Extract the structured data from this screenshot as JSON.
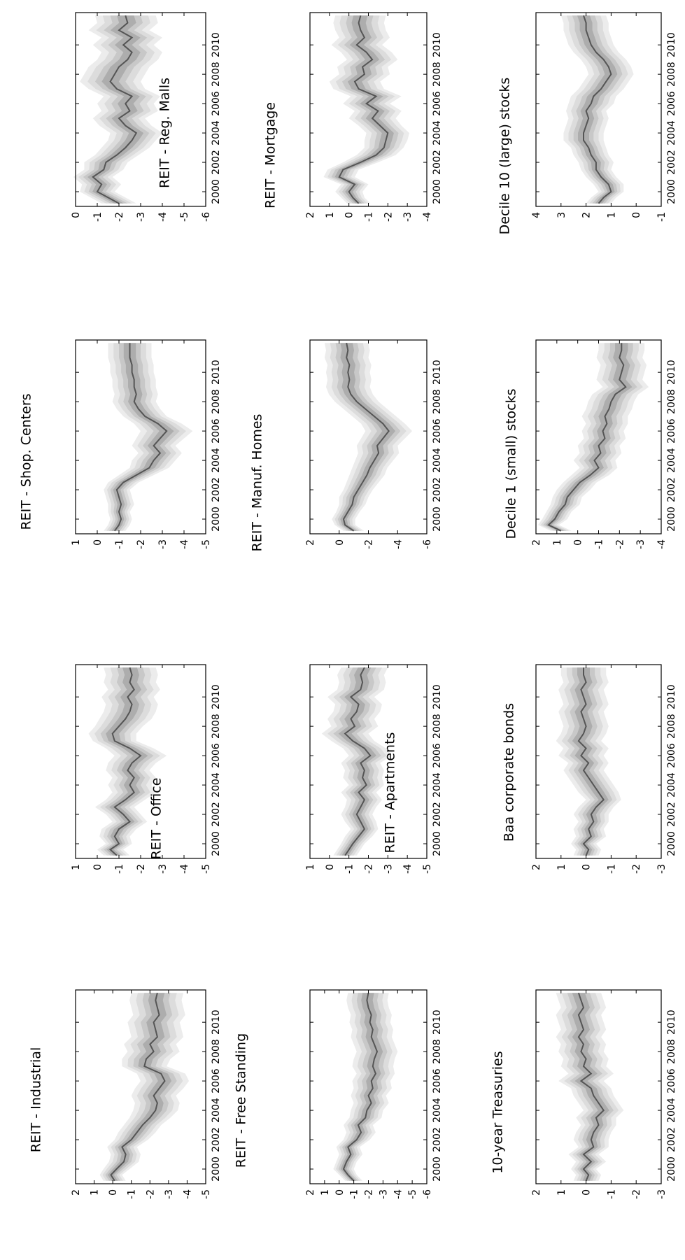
{
  "figure": {
    "x_tick_labels": [
      "2000",
      "2002",
      "2004",
      "2006",
      "2008",
      "2010"
    ]
  },
  "chart_data": [
    {
      "type": "area",
      "title": "REIT - Industrial",
      "xlim": [
        1999,
        2012.2
      ],
      "ylim": [
        -5,
        2
      ],
      "yticks": [
        -5,
        -4,
        -3,
        -2,
        -1,
        0,
        1,
        2
      ],
      "x": [
        1999.2,
        1999.6,
        2000.0,
        2000.5,
        2001.0,
        2001.5,
        2002.0,
        2002.5,
        2003.0,
        2003.5,
        2004.0,
        2004.5,
        2005.0,
        2005.5,
        2006.0,
        2006.5,
        2007.0,
        2007.5,
        2008.0,
        2008.5,
        2009.0,
        2009.5,
        2010.0,
        2010.5,
        2011.0,
        2011.5,
        2012.0
      ],
      "median": [
        -0.1,
        0.1,
        -0.2,
        -0.6,
        -0.7,
        -0.5,
        -1.0,
        -1.3,
        -1.6,
        -2.0,
        -2.3,
        -2.4,
        -2.2,
        -2.5,
        -2.8,
        -2.6,
        -1.7,
        -1.8,
        -2.2,
        -2.0,
        -2.4,
        -2.3,
        -2.2,
        -2.5,
        -2.4,
        -2.3,
        -2.4
      ],
      "band": [
        0.6,
        0.6,
        0.7,
        0.8,
        0.8,
        0.8,
        0.9,
        1.0,
        1.0,
        1.1,
        1.2,
        1.2,
        1.2,
        1.3,
        1.3,
        1.3,
        1.2,
        1.3,
        1.4,
        1.4,
        1.4,
        1.4,
        1.4,
        1.4,
        1.4,
        1.4,
        1.4
      ]
    },
    {
      "type": "area",
      "title": "REIT - Office",
      "xlim": [
        1999,
        2012.2
      ],
      "ylim": [
        -5,
        1
      ],
      "yticks": [
        -5,
        -4,
        -3,
        -2,
        -1,
        0,
        1
      ],
      "x": [
        1999.2,
        1999.6,
        2000.0,
        2000.5,
        2001.0,
        2001.5,
        2002.0,
        2002.5,
        2003.0,
        2003.5,
        2004.0,
        2004.5,
        2005.0,
        2005.5,
        2006.0,
        2006.5,
        2007.0,
        2007.5,
        2008.0,
        2008.5,
        2009.0,
        2009.5,
        2010.0,
        2010.5,
        2011.0,
        2011.5,
        2012.0
      ],
      "median": [
        -0.9,
        -0.6,
        -1.0,
        -0.8,
        -1.0,
        -1.5,
        -1.2,
        -0.8,
        -1.3,
        -1.7,
        -1.5,
        -1.7,
        -1.4,
        -1.6,
        -2.0,
        -1.5,
        -0.8,
        -0.7,
        -1.0,
        -1.3,
        -1.5,
        -1.6,
        -1.4,
        -1.7,
        -1.5,
        -1.6,
        -1.5
      ],
      "band": [
        0.6,
        0.6,
        0.6,
        0.7,
        0.8,
        0.8,
        0.8,
        0.9,
        0.9,
        1.0,
        1.0,
        1.0,
        1.0,
        1.1,
        1.2,
        1.1,
        1.0,
        1.1,
        1.1,
        1.2,
        1.2,
        1.2,
        1.2,
        1.2,
        1.2,
        1.2,
        1.2
      ]
    },
    {
      "type": "area",
      "title": "REIT - Shop. Centers",
      "xlim": [
        1999,
        2012.2
      ],
      "ylim": [
        -5,
        1
      ],
      "yticks": [
        -5,
        -4,
        -3,
        -2,
        -1,
        0,
        1
      ],
      "x": [
        1999.2,
        1999.6,
        2000.0,
        2000.5,
        2001.0,
        2001.5,
        2002.0,
        2002.5,
        2003.0,
        2003.5,
        2004.0,
        2004.5,
        2005.0,
        2005.5,
        2006.0,
        2006.5,
        2007.0,
        2007.5,
        2008.0,
        2008.5,
        2009.0,
        2009.5,
        2010.0,
        2010.5,
        2011.0,
        2011.5,
        2012.0
      ],
      "median": [
        -0.8,
        -1.0,
        -1.1,
        -1.0,
        -1.1,
        -1.0,
        -0.9,
        -1.2,
        -1.8,
        -2.4,
        -2.6,
        -2.9,
        -2.6,
        -2.9,
        -3.2,
        -2.8,
        -2.2,
        -1.9,
        -1.7,
        -1.8,
        -1.7,
        -1.7,
        -1.6,
        -1.6,
        -1.5,
        -1.5,
        -1.5
      ],
      "band": [
        0.5,
        0.5,
        0.5,
        0.5,
        0.6,
        0.6,
        0.6,
        0.7,
        0.8,
        0.9,
        1.0,
        1.0,
        1.0,
        1.1,
        1.2,
        1.1,
        1.0,
        1.0,
        1.0,
        1.0,
        1.0,
        1.0,
        1.0,
        1.0,
        1.0,
        1.0,
        1.0
      ]
    },
    {
      "type": "area",
      "title": "REIT - Reg. Malls",
      "xlim": [
        1999,
        2012.2
      ],
      "ylim": [
        -6,
        0
      ],
      "yticks": [
        -6,
        -5,
        -4,
        -3,
        -2,
        -1,
        0
      ],
      "x": [
        1999.2,
        1999.6,
        2000.0,
        2000.5,
        2001.0,
        2001.5,
        2002.0,
        2002.5,
        2003.0,
        2003.5,
        2004.0,
        2004.5,
        2005.0,
        2005.5,
        2006.0,
        2006.5,
        2007.0,
        2007.5,
        2008.0,
        2008.5,
        2009.0,
        2009.5,
        2010.0,
        2010.5,
        2011.0,
        2011.5,
        2012.0
      ],
      "median": [
        -2.0,
        -1.5,
        -1.0,
        -1.2,
        -0.8,
        -1.3,
        -1.4,
        -1.9,
        -2.3,
        -2.6,
        -2.8,
        -2.3,
        -2.0,
        -2.5,
        -2.3,
        -2.6,
        -1.9,
        -1.6,
        -1.8,
        -2.0,
        -2.4,
        -2.6,
        -2.2,
        -2.6,
        -2.0,
        -2.4,
        -2.3
      ],
      "band": [
        0.8,
        0.8,
        0.8,
        0.9,
        0.9,
        0.9,
        1.0,
        1.0,
        1.1,
        1.1,
        1.2,
        1.2,
        1.2,
        1.3,
        1.3,
        1.3,
        1.3,
        1.4,
        1.4,
        1.4,
        1.4,
        1.4,
        1.4,
        1.4,
        1.4,
        1.4,
        1.4
      ]
    },
    {
      "type": "area",
      "title": "REIT - Free Standing",
      "xlim": [
        1999,
        2012.2
      ],
      "ylim": [
        -6,
        2
      ],
      "yticks": [
        -6,
        -5,
        -4,
        -3,
        -2,
        -1,
        0,
        1,
        2
      ],
      "x": [
        1999.2,
        1999.6,
        2000.0,
        2000.5,
        2001.0,
        2001.5,
        2002.0,
        2002.5,
        2003.0,
        2003.5,
        2004.0,
        2004.5,
        2005.0,
        2005.5,
        2006.0,
        2006.5,
        2007.0,
        2007.5,
        2008.0,
        2008.5,
        2009.0,
        2009.5,
        2010.0,
        2010.5,
        2011.0,
        2011.5,
        2012.0
      ],
      "median": [
        -1.0,
        -0.6,
        -0.3,
        -0.5,
        -0.8,
        -0.6,
        -1.2,
        -1.5,
        -1.3,
        -1.8,
        -1.9,
        -2.2,
        -2.0,
        -2.3,
        -2.2,
        -2.5,
        -2.3,
        -2.4,
        -2.6,
        -2.4,
        -2.2,
        -2.3,
        -2.1,
        -2.2,
        -2.0,
        -1.9,
        -2.0
      ],
      "band": [
        0.6,
        0.6,
        0.7,
        0.7,
        0.8,
        0.8,
        0.9,
        1.0,
        1.0,
        1.1,
        1.1,
        1.2,
        1.2,
        1.3,
        1.3,
        1.3,
        1.4,
        1.4,
        1.4,
        1.4,
        1.4,
        1.4,
        1.4,
        1.4,
        1.4,
        1.4,
        1.4
      ]
    },
    {
      "type": "area",
      "title": "REIT - Apartments",
      "xlim": [
        1999,
        2012.2
      ],
      "ylim": [
        -5,
        1
      ],
      "yticks": [
        -5,
        -4,
        -3,
        -2,
        -1,
        0,
        1
      ],
      "x": [
        1999.2,
        1999.6,
        2000.0,
        2000.5,
        2001.0,
        2001.5,
        2002.0,
        2002.5,
        2003.0,
        2003.5,
        2004.0,
        2004.5,
        2005.0,
        2005.5,
        2006.0,
        2006.5,
        2007.0,
        2007.5,
        2008.0,
        2008.5,
        2009.0,
        2009.5,
        2010.0,
        2010.5,
        2011.0,
        2011.5,
        2012.0
      ],
      "median": [
        -0.8,
        -1.0,
        -1.2,
        -1.5,
        -1.8,
        -1.6,
        -1.4,
        -1.6,
        -1.8,
        -1.5,
        -1.9,
        -1.7,
        -1.8,
        -1.6,
        -2.1,
        -1.8,
        -1.2,
        -0.8,
        -1.3,
        -1.1,
        -1.4,
        -1.5,
        -1.1,
        -1.6,
        -1.7,
        -1.6,
        -1.8
      ],
      "band": [
        0.6,
        0.6,
        0.6,
        0.7,
        0.7,
        0.8,
        0.8,
        0.8,
        0.9,
        0.9,
        0.9,
        1.0,
        1.0,
        1.0,
        1.1,
        1.1,
        1.1,
        1.2,
        1.2,
        1.2,
        1.2,
        1.2,
        1.2,
        1.2,
        1.2,
        1.2,
        1.2
      ]
    },
    {
      "type": "area",
      "title": "REIT - Manuf. Homes",
      "xlim": [
        1999,
        2012.2
      ],
      "ylim": [
        -6,
        2
      ],
      "yticks": [
        -6,
        -4,
        -2,
        0,
        2
      ],
      "x": [
        1999.2,
        1999.6,
        2000.0,
        2000.5,
        2001.0,
        2001.5,
        2002.0,
        2002.5,
        2003.0,
        2003.5,
        2004.0,
        2004.5,
        2005.0,
        2005.5,
        2006.0,
        2006.5,
        2007.0,
        2007.5,
        2008.0,
        2008.5,
        2009.0,
        2009.5,
        2010.0,
        2010.5,
        2011.0,
        2011.5,
        2012.0
      ],
      "median": [
        -1.0,
        -0.4,
        -0.3,
        -0.6,
        -0.9,
        -1.0,
        -1.3,
        -1.6,
        -1.9,
        -2.1,
        -2.4,
        -2.7,
        -2.6,
        -3.0,
        -3.4,
        -3.0,
        -2.4,
        -1.8,
        -1.2,
        -0.8,
        -0.6,
        -0.7,
        -0.6,
        -0.7,
        -0.5,
        -0.6,
        -0.5
      ],
      "band": [
        0.7,
        0.7,
        0.8,
        0.8,
        0.9,
        1.0,
        1.0,
        1.1,
        1.2,
        1.2,
        1.3,
        1.4,
        1.4,
        1.5,
        1.6,
        1.5,
        1.5,
        1.5,
        1.5,
        1.5,
        1.5,
        1.5,
        1.5,
        1.5,
        1.5,
        1.5,
        1.5
      ]
    },
    {
      "type": "area",
      "title": "REIT - Mortgage",
      "xlim": [
        1999,
        2012.2
      ],
      "ylim": [
        -4,
        2
      ],
      "yticks": [
        -4,
        -3,
        -2,
        -1,
        0,
        1,
        2
      ],
      "x": [
        1999.2,
        1999.6,
        2000.0,
        2000.5,
        2001.0,
        2001.5,
        2002.0,
        2002.5,
        2003.0,
        2003.5,
        2004.0,
        2004.5,
        2005.0,
        2005.5,
        2006.0,
        2006.5,
        2007.0,
        2007.5,
        2008.0,
        2008.5,
        2009.0,
        2009.5,
        2010.0,
        2010.5,
        2011.0,
        2011.5,
        2012.0
      ],
      "median": [
        -0.5,
        -0.2,
        0.0,
        -0.3,
        0.5,
        0.3,
        -0.6,
        -1.4,
        -1.8,
        -1.9,
        -2.0,
        -1.6,
        -1.2,
        -1.5,
        -0.9,
        -1.4,
        -0.5,
        -0.3,
        -0.8,
        -0.7,
        -1.2,
        -0.9,
        -0.4,
        -0.8,
        -0.6,
        -0.5,
        -0.6
      ],
      "band": [
        0.6,
        0.6,
        0.7,
        0.7,
        0.8,
        0.8,
        0.9,
        1.0,
        1.0,
        1.1,
        1.1,
        1.1,
        1.2,
        1.2,
        1.2,
        1.3,
        1.3,
        1.3,
        1.3,
        1.3,
        1.3,
        1.3,
        1.3,
        1.3,
        1.3,
        1.3,
        1.3
      ]
    },
    {
      "type": "area",
      "title": "10-year Treasuries",
      "xlim": [
        1999,
        2012.2
      ],
      "ylim": [
        -3,
        2
      ],
      "yticks": [
        -3,
        -2,
        -1,
        0,
        1,
        2
      ],
      "x": [
        1999.2,
        1999.6,
        2000.0,
        2000.5,
        2001.0,
        2001.5,
        2002.0,
        2002.5,
        2003.0,
        2003.5,
        2004.0,
        2004.5,
        2005.0,
        2005.5,
        2006.0,
        2006.5,
        2007.0,
        2007.5,
        2008.0,
        2008.5,
        2009.0,
        2009.5,
        2010.0,
        2010.5,
        2011.0,
        2011.5,
        2012.0
      ],
      "median": [
        0.0,
        -0.1,
        0.1,
        -0.2,
        0.1,
        -0.3,
        -0.2,
        -0.3,
        -0.5,
        -0.4,
        -0.7,
        -0.5,
        -0.3,
        -0.2,
        0.2,
        -0.2,
        0.1,
        0.0,
        0.2,
        0.1,
        0.3,
        0.1,
        0.2,
        0.3,
        0.1,
        0.2,
        0.3
      ],
      "band": [
        0.5,
        0.5,
        0.5,
        0.6,
        0.6,
        0.6,
        0.7,
        0.7,
        0.7,
        0.8,
        0.8,
        0.8,
        0.8,
        0.8,
        0.9,
        0.9,
        0.9,
        0.9,
        0.9,
        0.9,
        0.9,
        0.9,
        0.9,
        0.9,
        0.9,
        0.9,
        0.9
      ]
    },
    {
      "type": "area",
      "title": "Baa corporate bonds",
      "xlim": [
        1999,
        2012.2
      ],
      "ylim": [
        -3,
        2
      ],
      "yticks": [
        -3,
        -2,
        -1,
        0,
        1,
        2
      ],
      "x": [
        1999.2,
        1999.6,
        2000.0,
        2000.5,
        2001.0,
        2001.5,
        2002.0,
        2002.5,
        2003.0,
        2003.5,
        2004.0,
        2004.5,
        2005.0,
        2005.5,
        2006.0,
        2006.5,
        2007.0,
        2007.5,
        2008.0,
        2008.5,
        2009.0,
        2009.5,
        2010.0,
        2010.5,
        2011.0,
        2011.5,
        2012.0
      ],
      "median": [
        0.0,
        -0.1,
        0.1,
        -0.2,
        -0.1,
        -0.3,
        -0.2,
        -0.4,
        -0.7,
        -0.5,
        -0.3,
        -0.1,
        0.1,
        -0.1,
        0.2,
        0.0,
        0.3,
        0.1,
        0.0,
        0.1,
        0.2,
        0.0,
        0.1,
        0.2,
        0.0,
        0.1,
        0.1
      ],
      "band": [
        0.5,
        0.5,
        0.5,
        0.6,
        0.6,
        0.6,
        0.7,
        0.7,
        0.7,
        0.8,
        0.8,
        0.8,
        0.8,
        0.8,
        0.9,
        0.9,
        0.9,
        0.9,
        0.9,
        0.9,
        0.9,
        0.9,
        0.9,
        0.9,
        0.9,
        0.9,
        0.9
      ]
    },
    {
      "type": "area",
      "title": "Decile 1 (small) stocks",
      "xlim": [
        1999,
        2012.2
      ],
      "ylim": [
        -4,
        2
      ],
      "yticks": [
        -4,
        -3,
        -2,
        -1,
        0,
        1,
        2
      ],
      "x": [
        1999.2,
        1999.6,
        2000.0,
        2000.5,
        2001.0,
        2001.5,
        2002.0,
        2002.5,
        2003.0,
        2003.5,
        2004.0,
        2004.5,
        2005.0,
        2005.5,
        2006.0,
        2006.5,
        2007.0,
        2007.5,
        2008.0,
        2008.5,
        2009.0,
        2009.5,
        2010.0,
        2010.5,
        2011.0,
        2011.5,
        2012.0
      ],
      "median": [
        0.8,
        1.4,
        1.1,
        0.9,
        0.6,
        0.5,
        0.2,
        -0.1,
        -0.6,
        -1.0,
        -0.8,
        -1.1,
        -1.0,
        -1.3,
        -1.2,
        -1.4,
        -1.3,
        -1.5,
        -1.6,
        -1.8,
        -2.3,
        -2.0,
        -2.1,
        -2.2,
        -2.0,
        -2.1,
        -2.1
      ],
      "band": [
        0.5,
        0.5,
        0.6,
        0.6,
        0.7,
        0.7,
        0.8,
        0.8,
        0.9,
        0.9,
        1.0,
        1.0,
        1.0,
        1.0,
        1.0,
        1.0,
        1.1,
        1.1,
        1.1,
        1.1,
        1.1,
        1.1,
        1.1,
        1.1,
        1.1,
        1.1,
        1.1
      ]
    },
    {
      "type": "area",
      "title": "Decile 10 (large) stocks",
      "xlim": [
        1999,
        2012.2
      ],
      "ylim": [
        -1,
        4
      ],
      "yticks": [
        -1,
        0,
        1,
        2,
        3,
        4
      ],
      "x": [
        1999.2,
        1999.6,
        2000.0,
        2000.5,
        2001.0,
        2001.5,
        2002.0,
        2002.5,
        2003.0,
        2003.5,
        2004.0,
        2004.5,
        2005.0,
        2005.5,
        2006.0,
        2006.5,
        2007.0,
        2007.5,
        2008.0,
        2008.5,
        2009.0,
        2009.5,
        2010.0,
        2010.5,
        2011.0,
        2011.5,
        2012.0
      ],
      "median": [
        1.5,
        1.3,
        1.0,
        1.1,
        1.4,
        1.6,
        1.6,
        1.8,
        1.9,
        2.1,
        2.1,
        2.0,
        1.9,
        2.0,
        1.8,
        1.7,
        1.4,
        1.2,
        1.0,
        1.1,
        1.3,
        1.6,
        1.8,
        1.9,
        2.0,
        2.0,
        2.1
      ],
      "band": [
        0.5,
        0.5,
        0.5,
        0.6,
        0.6,
        0.6,
        0.7,
        0.7,
        0.7,
        0.8,
        0.8,
        0.8,
        0.8,
        0.8,
        0.9,
        0.9,
        0.9,
        0.9,
        0.9,
        0.9,
        0.9,
        0.9,
        0.9,
        0.9,
        0.9,
        0.9,
        0.9
      ]
    }
  ]
}
